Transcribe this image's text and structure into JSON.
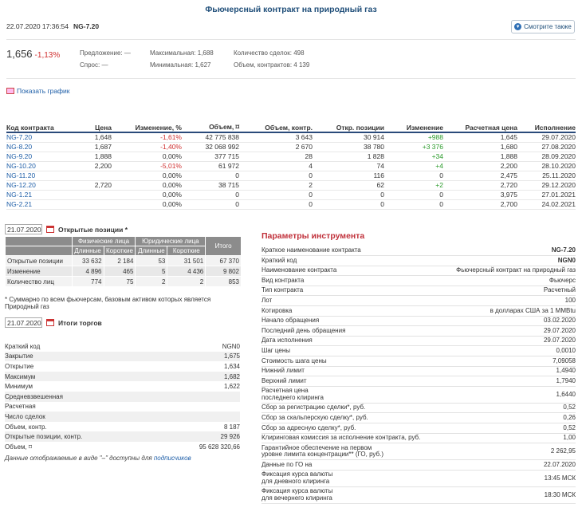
{
  "title": "Фьючерсный контракт на природный газ",
  "header": {
    "datetime": "22.07.2020 17:36:54",
    "code": "NG-7.20",
    "see_also": "Смотрите также"
  },
  "quote": {
    "price": "1,656",
    "change": "-1,13%",
    "offer_label": "Предложение:",
    "offer": "—",
    "bid_label": "Спрос:",
    "bid": "—",
    "max_label": "Максимальная:",
    "max": "1,688",
    "min_label": "Минимальная:",
    "min": "1,627",
    "deals_label": "Количество сделок:",
    "deals": "498",
    "volume_label": "Объем, контрактов:",
    "volume": "4 139"
  },
  "show_chart": "Показать график",
  "main_table": {
    "headers": [
      "Код контракта",
      "Цена",
      "Изменение, %",
      "Объем, ⌑",
      "Объем, контр.",
      "Откр. позиции",
      "Изменение",
      "Расчетная цена",
      "Исполнение"
    ],
    "rows": [
      [
        "NG-7.20",
        "1,648",
        "-1,61%",
        "42 775 838",
        "3 643",
        "30 914",
        "+988",
        "1,645",
        "29.07.2020"
      ],
      [
        "NG-8.20",
        "1,687",
        "-1,40%",
        "32 068 992",
        "2 670",
        "38 780",
        "+3 376",
        "1,680",
        "27.08.2020"
      ],
      [
        "NG-9.20",
        "1,888",
        "0,00%",
        "377 715",
        "28",
        "1 828",
        "+34",
        "1,888",
        "28.09.2020"
      ],
      [
        "NG-10.20",
        "2,200",
        "-5,01%",
        "61 972",
        "4",
        "74",
        "+4",
        "2,200",
        "28.10.2020"
      ],
      [
        "NG-11.20",
        "",
        "0,00%",
        "0",
        "0",
        "116",
        "0",
        "2,475",
        "25.11.2020"
      ],
      [
        "NG-12.20",
        "2,720",
        "0,00%",
        "38 715",
        "2",
        "62",
        "+2",
        "2,720",
        "29.12.2020"
      ],
      [
        "NG-1.21",
        "",
        "0,00%",
        "0",
        "0",
        "0",
        "0",
        "3,975",
        "27.01.2021"
      ],
      [
        "NG-2.21",
        "",
        "0,00%",
        "0",
        "0",
        "0",
        "0",
        "2,700",
        "24.02.2021"
      ]
    ]
  },
  "oi": {
    "date": "21.07.2020",
    "title": "Открытые позиции *",
    "phys": "Физические лица",
    "jur": "Юридические лица",
    "total": "Итого",
    "long": "Длинные",
    "short": "Короткие",
    "rows": [
      [
        "Открытые позиции",
        "33 632",
        "2 184",
        "53",
        "31 501",
        "67 370"
      ],
      [
        "Изменение",
        "4 896",
        "465",
        "5",
        "4 436",
        "9 802"
      ],
      [
        "Количество лиц",
        "774",
        "75",
        "2",
        "2",
        "853"
      ]
    ],
    "note": "* Суммарно по всем фьючерсам, базовым активом которых является Природный газ"
  },
  "trades": {
    "date": "21.07.2020",
    "title": "Итоги торгов",
    "rows": [
      [
        "Краткий код",
        "NGN0"
      ],
      [
        "Закрытие",
        "1,675"
      ],
      [
        "Открытие",
        "1,634"
      ],
      [
        "Максимум",
        "1,682"
      ],
      [
        "Минимум",
        "1,622"
      ],
      [
        "Средневзвешенная",
        ""
      ],
      [
        "Расчетная",
        ""
      ],
      [
        "Число сделок",
        ""
      ],
      [
        "Объем, контр.",
        "8 187"
      ],
      [
        "Открытые позиции, контр.",
        "29 926"
      ],
      [
        "Объем, ⌑",
        "95 628 320,66"
      ]
    ],
    "footer_text": "Данные отображаемые в виде \"–\" доступны для ",
    "footer_link": "подписчиков"
  },
  "params": {
    "title": "Параметры инструмента",
    "rows": [
      [
        "Краткое наименование контракта",
        "NG-7.20",
        1
      ],
      [
        "Краткий код",
        "NGN0",
        1
      ],
      [
        "Наименование контракта",
        "Фьючерсный контракт на природный газ",
        0
      ],
      [
        "Вид контракта",
        "Фьючерс",
        0
      ],
      [
        "Тип контракта",
        "Расчетный",
        0
      ],
      [
        "Лот",
        "100",
        0
      ],
      [
        "Котировка",
        "в долларах США за 1 MMBtu",
        0
      ],
      [
        "Начало обращения",
        "03.02.2020",
        0
      ],
      [
        "Последний день обращения",
        "29.07.2020",
        0
      ],
      [
        "Дата исполнения",
        "29.07.2020",
        0
      ],
      [
        "Шаг цены",
        "0,0010",
        0
      ],
      [
        "Стоимость шага цены",
        "7,09058",
        0
      ],
      [
        "Нижний лимит",
        "1,4940",
        0
      ],
      [
        "Верхний лимит",
        "1,7940",
        0
      ],
      [
        "Расчетная цена\nпоследнего клиринга",
        "1,6440",
        0
      ],
      [
        "Сбор за регистрацию сделки*, руб.",
        "0,52",
        0
      ],
      [
        "Сбор за скальперскую сделку*, руб.",
        "0,26",
        0
      ],
      [
        "Сбор за адресную сделку*, руб.",
        "0,52",
        0
      ],
      [
        "Клиринговая комиссия за исполнение контракта, руб.",
        "1,00",
        0
      ],
      [
        "Гарантийное обеспечение на первом\nуровне лимита концентрации** (ГО, руб.)",
        "2 262,95",
        0
      ],
      [
        "Данные по ГО на",
        "22.07.2020",
        0
      ],
      [
        "Фиксация курса валюты\nдля дневного клиринга",
        "13:45 МСК",
        0
      ],
      [
        "Фиксация курса валюты\nдля вечернего клиринга",
        "18:30 МСК",
        0
      ]
    ]
  }
}
